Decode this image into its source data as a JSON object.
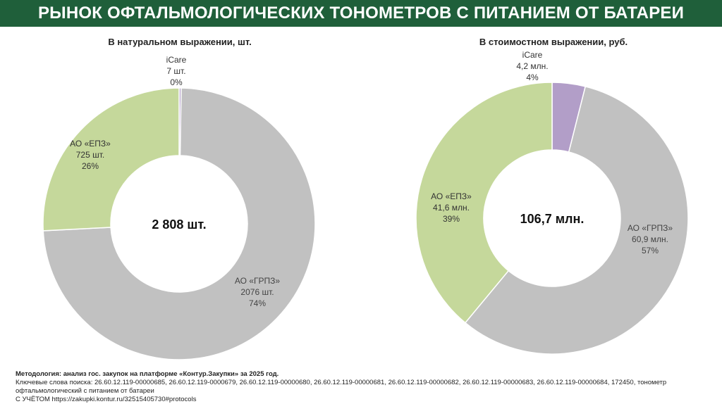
{
  "header": {
    "title": "РЫНОК ОФТАЛЬМОЛОГИЧЕСКИХ ТОНОМЕТРОВ С ПИТАНИЕМ ОТ БАТАРЕИ"
  },
  "colors": {
    "header_bg": "#1f5f3a",
    "grpz": "#c1c1c1",
    "epz": "#c5d89b",
    "icare": "#b29ec8"
  },
  "chart_data": [
    {
      "type": "pie",
      "subtype": "donut",
      "title": "В натуральном выражении, шт.",
      "center_label": "2 808 шт.",
      "slices": [
        {
          "name": "АО «ГРПЗ»",
          "value": 2076,
          "value_label": "2076 шт.",
          "percent_label": "74%",
          "color": "#c1c1c1"
        },
        {
          "name": "АО «ЕПЗ»",
          "value": 725,
          "value_label": "725 шт.",
          "percent_label": "26%",
          "color": "#c5d89b"
        },
        {
          "name": "iCare",
          "value": 7,
          "value_label": "7 шт.",
          "percent_label": "0%",
          "color": "#b29ec8"
        }
      ]
    },
    {
      "type": "pie",
      "subtype": "donut",
      "title": "В стоимостном выражении, руб.",
      "center_label": "106,7 млн.",
      "slices": [
        {
          "name": "АО «ГРПЗ»",
          "value": 60.9,
          "value_label": "60,9 млн.",
          "percent_label": "57%",
          "color": "#c1c1c1"
        },
        {
          "name": "АО «ЕПЗ»",
          "value": 41.6,
          "value_label": "41,6 млн.",
          "percent_label": "39%",
          "color": "#c5d89b"
        },
        {
          "name": "iCare",
          "value": 4.2,
          "value_label": "4,2 млн.",
          "percent_label": "4%",
          "color": "#b29ec8"
        }
      ]
    }
  ],
  "footer": {
    "line1": "Методология: анализ гос. закупок на платформе «Контур.Закупки» за 2025 год.",
    "line2": "Ключевые слова поиска: 26.60.12.119-00000685, 26.60.12.119-0000679, 26.60.12.119-00000680, 26.60.12.119-00000681, 26.60.12.119-00000682, 26.60.12.119-00000683, 26.60.12.119-00000684,  172450, тонометр",
    "line3": "офтальмологический с питанием от батареи",
    "line4": "С УЧЁТОМ https://zakupki.kontur.ru/32515405730#protocols"
  }
}
